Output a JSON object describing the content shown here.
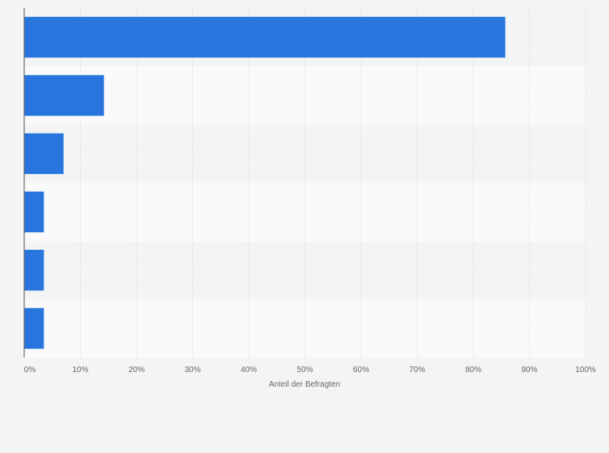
{
  "chart_data": {
    "type": "bar",
    "orientation": "horizontal",
    "title": "",
    "xlabel": "Anteil der Befragten",
    "ylabel": "",
    "categories": [
      "",
      "",
      "",
      "",
      "",
      ""
    ],
    "values": [
      85.7,
      14.2,
      7.0,
      3.5,
      3.5,
      3.5
    ],
    "xlim": [
      0,
      100
    ],
    "xticks": [
      "0%",
      "10%",
      "20%",
      "30%",
      "40%",
      "50%",
      "60%",
      "70%",
      "80%",
      "90%",
      "100%"
    ],
    "grid": true,
    "bar_color": "#2775dd",
    "band_colors": [
      "#f4f4f4",
      "#fafafa"
    ]
  }
}
